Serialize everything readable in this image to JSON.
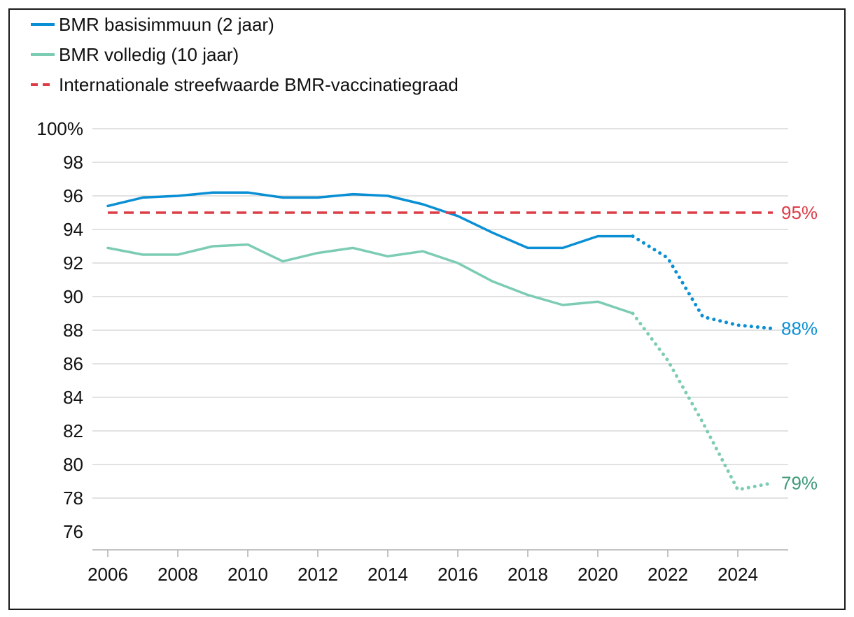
{
  "chart_data": {
    "type": "line",
    "title": "",
    "xlabel": "",
    "ylabel": "",
    "xlim": [
      2006,
      2025
    ],
    "ylim": [
      76,
      100
    ],
    "grid": true,
    "legend_position": "top-left",
    "x_ticks": [
      2006,
      2008,
      2010,
      2012,
      2014,
      2016,
      2018,
      2020,
      2022,
      2024
    ],
    "x_tick_labels": [
      "2006",
      "2008",
      "2010",
      "2012",
      "2014",
      "2016",
      "2018",
      "2020",
      "2022",
      "2024"
    ],
    "y_ticks": [
      76,
      78,
      80,
      82,
      84,
      86,
      88,
      90,
      92,
      94,
      96,
      98,
      100
    ],
    "y_tick_labels": [
      "76",
      "78",
      "80",
      "82",
      "84",
      "86",
      "88",
      "90",
      "92",
      "94",
      "96",
      "98",
      "100%"
    ],
    "series": [
      {
        "name": "BMR basisimmuun (2 jaar)",
        "color": "#0a8fd4",
        "line_style": "solid",
        "x": [
          2006,
          2007,
          2008,
          2009,
          2010,
          2011,
          2012,
          2013,
          2014,
          2015,
          2016,
          2017,
          2018,
          2019,
          2020,
          2021
        ],
        "y": [
          95.4,
          95.9,
          96.0,
          96.2,
          96.2,
          95.9,
          95.9,
          96.1,
          96.0,
          95.5,
          94.8,
          93.8,
          92.9,
          92.9,
          93.6,
          93.6
        ],
        "continuation": {
          "line_style": "dotted",
          "x": [
            2021,
            2022,
            2023,
            2024,
            2025
          ],
          "y": [
            93.6,
            92.3,
            88.8,
            88.3,
            88.1
          ]
        },
        "end_label": "88%"
      },
      {
        "name": "BMR volledig (10 jaar)",
        "color": "#7cccb4",
        "line_style": "solid",
        "x": [
          2006,
          2007,
          2008,
          2009,
          2010,
          2011,
          2012,
          2013,
          2014,
          2015,
          2016,
          2017,
          2018,
          2019,
          2020,
          2021
        ],
        "y": [
          92.9,
          92.5,
          92.5,
          93.0,
          93.1,
          92.1,
          92.6,
          92.9,
          92.4,
          92.7,
          92.0,
          90.9,
          90.1,
          89.5,
          89.7,
          89.0
        ],
        "continuation": {
          "line_style": "dotted",
          "x": [
            2021,
            2022,
            2023,
            2024,
            2025
          ],
          "y": [
            89.0,
            86.2,
            82.5,
            78.5,
            78.9
          ]
        },
        "end_label": "79%",
        "end_label_color": "#3f9a78"
      },
      {
        "name": "Internationale streefwaarde BMR-vaccinatiegraad",
        "color": "#dc3d47",
        "line_style": "dashed",
        "x": [
          2006,
          2025
        ],
        "y": [
          95,
          95
        ],
        "end_label": "95%"
      }
    ]
  }
}
